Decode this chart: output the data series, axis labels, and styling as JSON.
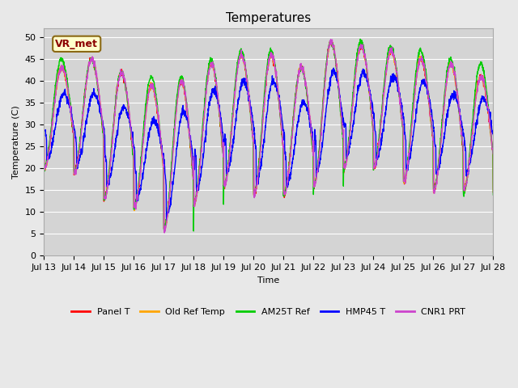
{
  "title": "Temperatures",
  "xlabel": "Time",
  "ylabel": "Temperature (C)",
  "ylim": [
    0,
    52
  ],
  "yticks": [
    0,
    5,
    10,
    15,
    20,
    25,
    30,
    35,
    40,
    45,
    50
  ],
  "x_labels": [
    "Jul 13",
    "Jul 14",
    "Jul 15",
    "Jul 16",
    "Jul 17",
    "Jul 18",
    "Jul 19",
    "Jul 20",
    "Jul 21",
    "Jul 22",
    "Jul 23",
    "Jul 24",
    "Jul 25",
    "Jul 26",
    "Jul 27",
    "Jul 28"
  ],
  "series": [
    {
      "name": "Panel T",
      "color": "#ff0000",
      "lw": 1.0
    },
    {
      "name": "Old Ref Temp",
      "color": "#ffa500",
      "lw": 1.0
    },
    {
      "name": "AM25T Ref",
      "color": "#00cc00",
      "lw": 1.0
    },
    {
      "name": "HMP45 T",
      "color": "#0000ff",
      "lw": 1.0
    },
    {
      "name": "CNR1 PRT",
      "color": "#cc44cc",
      "lw": 1.0
    }
  ],
  "annotation_text": "VR_met",
  "bg_color": "#e8e8e8",
  "plot_bg_color": "#d4d4d4",
  "grid_color": "#f0f0f0",
  "title_fontsize": 11,
  "axis_fontsize": 8,
  "tick_fontsize": 8,
  "legend_fontsize": 8,
  "daily_mins": [
    20,
    19,
    13,
    11,
    6,
    12,
    16,
    14,
    14,
    16,
    20,
    20,
    17,
    15,
    15
  ],
  "daily_maxs": [
    43,
    45,
    42,
    39,
    40,
    44,
    46,
    46,
    43,
    49,
    48,
    47,
    45,
    44,
    41
  ],
  "daily_mins_green": [
    20,
    19,
    13,
    11,
    6,
    12,
    16,
    14,
    14,
    16,
    20,
    20,
    17,
    15,
    14
  ],
  "daily_maxs_green": [
    45,
    45,
    42,
    41,
    41,
    45,
    47,
    47,
    43,
    49,
    49,
    48,
    47,
    45,
    44
  ],
  "daily_mins_blue": [
    22,
    21,
    16,
    13,
    9,
    15,
    19,
    17,
    16,
    19,
    23,
    22,
    20,
    19,
    19
  ],
  "daily_maxs_blue": [
    37,
    37,
    34,
    31,
    33,
    38,
    40,
    40,
    35,
    42,
    42,
    41,
    40,
    37,
    36
  ]
}
